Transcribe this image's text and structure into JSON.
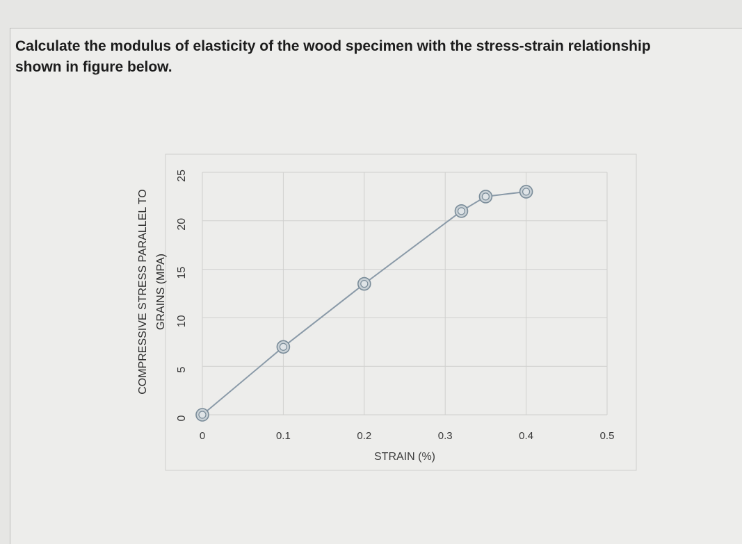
{
  "question": {
    "line1": "Calculate the modulus of elasticity of the wood specimen with the stress-strain relationship",
    "line2": "shown in figure below."
  },
  "chart_data": {
    "type": "scatter",
    "title": "",
    "xlabel": "STRAIN (%)",
    "ylabel_line1": "COMPRESSIVE STRESS PARALLEL TO",
    "ylabel_line2": "GRAINS (MPA)",
    "xlim": [
      0,
      0.5
    ],
    "ylim": [
      0,
      25
    ],
    "x_ticks": [
      "0",
      "0.1",
      "0.2",
      "0.3",
      "0.4",
      "0.5"
    ],
    "y_ticks": [
      "0",
      "5",
      "10",
      "15",
      "20",
      "25"
    ],
    "grid": true,
    "lines_connect_points": true,
    "series": [
      {
        "x": [
          0,
          0.1,
          0.2,
          0.32,
          0.35,
          0.4
        ],
        "y": [
          0,
          7,
          13.5,
          21,
          22.5,
          23
        ]
      }
    ],
    "colors": {
      "line": "#8a9aa8",
      "marker": "#7a8c99",
      "grid": "#d0d0ce"
    }
  }
}
